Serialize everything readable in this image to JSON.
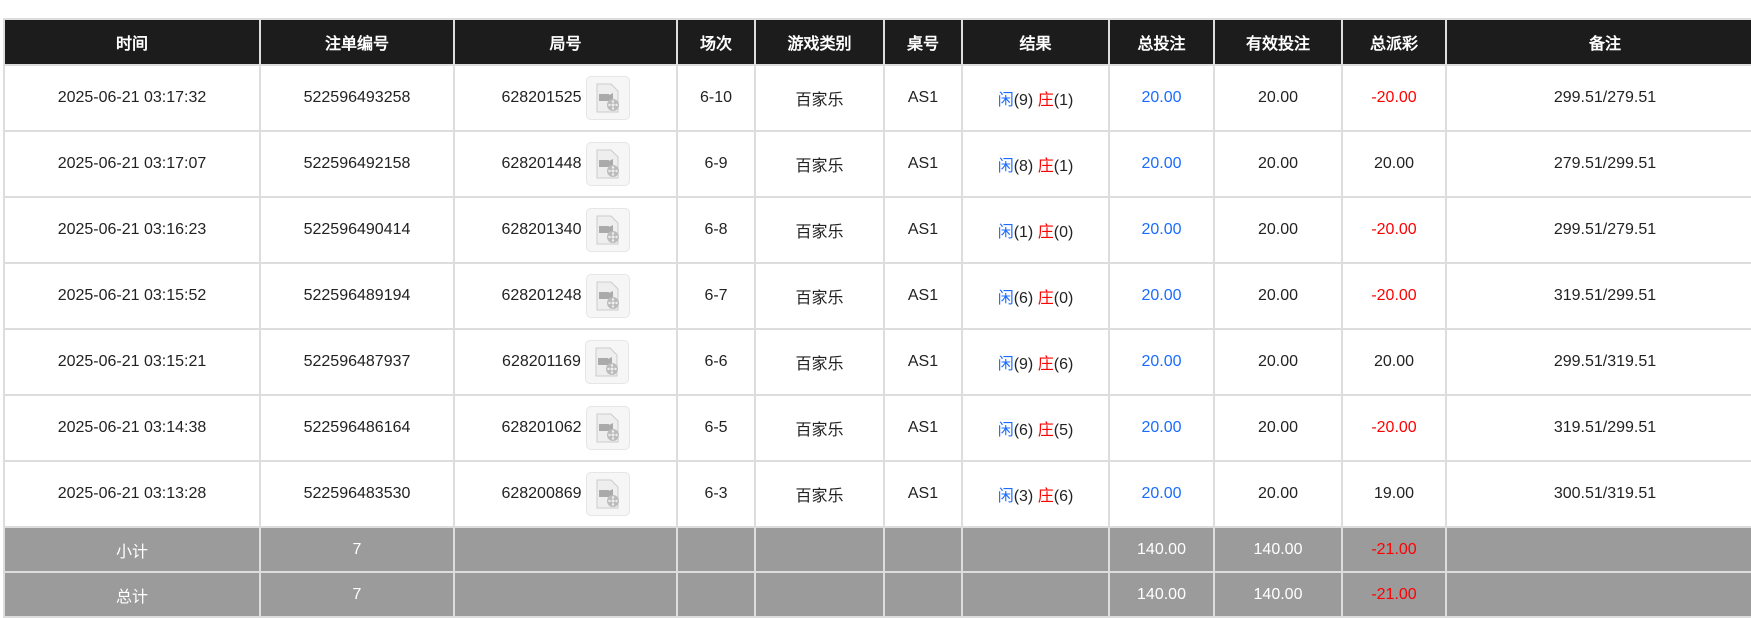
{
  "headers": [
    "时间",
    "注单编号",
    "局号",
    "场次",
    "游戏类别",
    "桌号",
    "结果",
    "总投注",
    "有效投注",
    "总派彩",
    "备注"
  ],
  "rows": [
    {
      "time": "2025-06-21 03:17:32",
      "bet_id": "522596493258",
      "round": "628201525",
      "session": "6-10",
      "game": "百家乐",
      "table": "AS1",
      "player_label": "闲",
      "player": "(9)",
      "banker_label": "庄",
      "banker": "(1)",
      "total_bet": "20.00",
      "valid_bet": "20.00",
      "payout": "-20.00",
      "payout_negative": true,
      "note": "299.51/279.51"
    },
    {
      "time": "2025-06-21 03:17:07",
      "bet_id": "522596492158",
      "round": "628201448",
      "session": "6-9",
      "game": "百家乐",
      "table": "AS1",
      "player_label": "闲",
      "player": "(8)",
      "banker_label": "庄",
      "banker": "(1)",
      "total_bet": "20.00",
      "valid_bet": "20.00",
      "payout": "20.00",
      "payout_negative": false,
      "note": "279.51/299.51"
    },
    {
      "time": "2025-06-21 03:16:23",
      "bet_id": "522596490414",
      "round": "628201340",
      "session": "6-8",
      "game": "百家乐",
      "table": "AS1",
      "player_label": "闲",
      "player": "(1)",
      "banker_label": "庄",
      "banker": "(0)",
      "total_bet": "20.00",
      "valid_bet": "20.00",
      "payout": "-20.00",
      "payout_negative": true,
      "note": "299.51/279.51"
    },
    {
      "time": "2025-06-21 03:15:52",
      "bet_id": "522596489194",
      "round": "628201248",
      "session": "6-7",
      "game": "百家乐",
      "table": "AS1",
      "player_label": "闲",
      "player": "(6)",
      "banker_label": "庄",
      "banker": "(0)",
      "total_bet": "20.00",
      "valid_bet": "20.00",
      "payout": "-20.00",
      "payout_negative": true,
      "note": "319.51/299.51"
    },
    {
      "time": "2025-06-21 03:15:21",
      "bet_id": "522596487937",
      "round": "628201169",
      "session": "6-6",
      "game": "百家乐",
      "table": "AS1",
      "player_label": "闲",
      "player": "(9)",
      "banker_label": "庄",
      "banker": "(6)",
      "total_bet": "20.00",
      "valid_bet": "20.00",
      "payout": "20.00",
      "payout_negative": false,
      "note": "299.51/319.51"
    },
    {
      "time": "2025-06-21 03:14:38",
      "bet_id": "522596486164",
      "round": "628201062",
      "session": "6-5",
      "game": "百家乐",
      "table": "AS1",
      "player_label": "闲",
      "player": "(6)",
      "banker_label": "庄",
      "banker": "(5)",
      "total_bet": "20.00",
      "valid_bet": "20.00",
      "payout": "-20.00",
      "payout_negative": true,
      "note": "319.51/299.51"
    },
    {
      "time": "2025-06-21 03:13:28",
      "bet_id": "522596483530",
      "round": "628200869",
      "session": "6-3",
      "game": "百家乐",
      "table": "AS1",
      "player_label": "闲",
      "player": "(3)",
      "banker_label": "庄",
      "banker": "(6)",
      "total_bet": "20.00",
      "valid_bet": "20.00",
      "payout": "19.00",
      "payout_negative": false,
      "note": "300.51/319.51"
    }
  ],
  "subtotal": {
    "label": "小计",
    "count": "7",
    "total_bet": "140.00",
    "valid_bet": "140.00",
    "payout": "-21.00"
  },
  "total": {
    "label": "总计",
    "count": "7",
    "total_bet": "140.00",
    "valid_bet": "140.00",
    "payout": "-21.00"
  },
  "icons": {
    "replay": "video-replay-icon"
  },
  "colors": {
    "header_bg": "#1c1c1c",
    "summary_bg": "#9b9b9b",
    "player": "#1a6cff",
    "banker": "#ff0000",
    "negative": "#ff0000"
  }
}
